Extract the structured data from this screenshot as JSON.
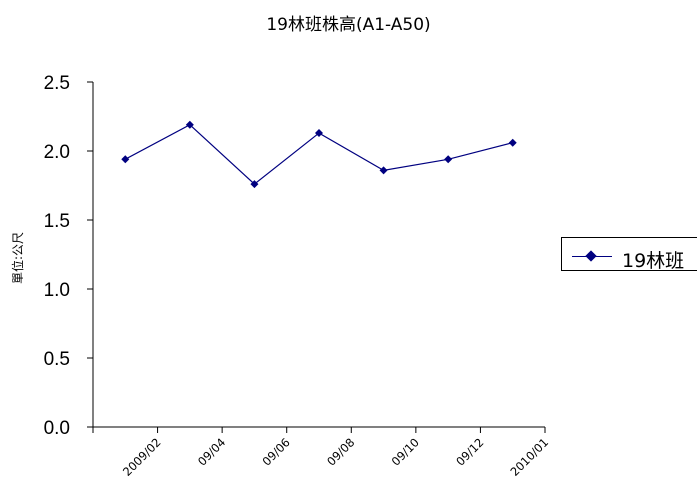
{
  "chart_data": {
    "type": "line",
    "title": "19林班株高(A1-A50)",
    "ylabel": "單位:公尺",
    "xlabel": "",
    "ylim": [
      0,
      2.5
    ],
    "yticks": [
      "0.0",
      "0.5",
      "1.0",
      "1.5",
      "2.0",
      "2.5"
    ],
    "categories": [
      "2009/02",
      "09/04",
      "09/06",
      "09/08",
      "09/10",
      "09/12",
      "2010/01"
    ],
    "series": [
      {
        "name": "19林班",
        "values": [
          1.94,
          2.19,
          1.76,
          2.13,
          1.86,
          1.94,
          2.06
        ],
        "color": "#000080"
      }
    ],
    "legend_position": "right",
    "grid": false
  }
}
